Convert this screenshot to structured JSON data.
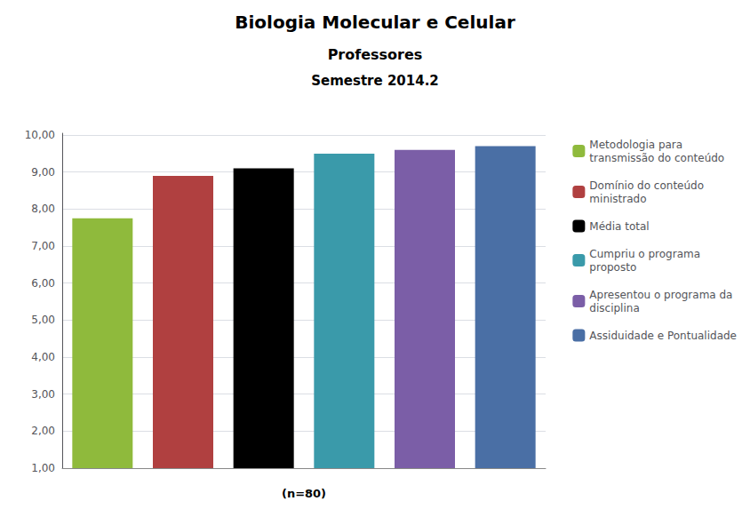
{
  "chart_data": {
    "type": "bar",
    "title": "Biologia Molecular e Celular",
    "subtitle": [
      "Professores",
      "Semestre 2014.2"
    ],
    "xlabel": "(n=80)",
    "categories": [
      "Metodologia para\ntransmissão do conteúdo",
      "Domínio do conteúdo\nministrado",
      "Média total",
      "Cumpriu o programa\nproposto",
      "Apresentou o programa da\ndisciplina",
      "Assiduidade e Pontualidade"
    ],
    "values": [
      7.75,
      8.9,
      9.1,
      9.5,
      9.6,
      9.7
    ],
    "colors": [
      "#8fba3c",
      "#b04040",
      "#000000",
      "#3a9aaa",
      "#7b5ea7",
      "#4a6fa5"
    ],
    "ylim": [
      1.0,
      10.05
    ],
    "yticks": [
      {
        "value": 1,
        "label": "1,00"
      },
      {
        "value": 2,
        "label": "2,00"
      },
      {
        "value": 3,
        "label": "3,00"
      },
      {
        "value": 4,
        "label": "4,00"
      },
      {
        "value": 5,
        "label": "5,00"
      },
      {
        "value": 6,
        "label": "6,00"
      },
      {
        "value": 7,
        "label": "7,00"
      },
      {
        "value": 8,
        "label": "8,00"
      },
      {
        "value": 9,
        "label": "9,00"
      },
      {
        "value": 10,
        "label": "10,00"
      }
    ],
    "grid": true,
    "legend": "right",
    "tick_labels": "y"
  }
}
